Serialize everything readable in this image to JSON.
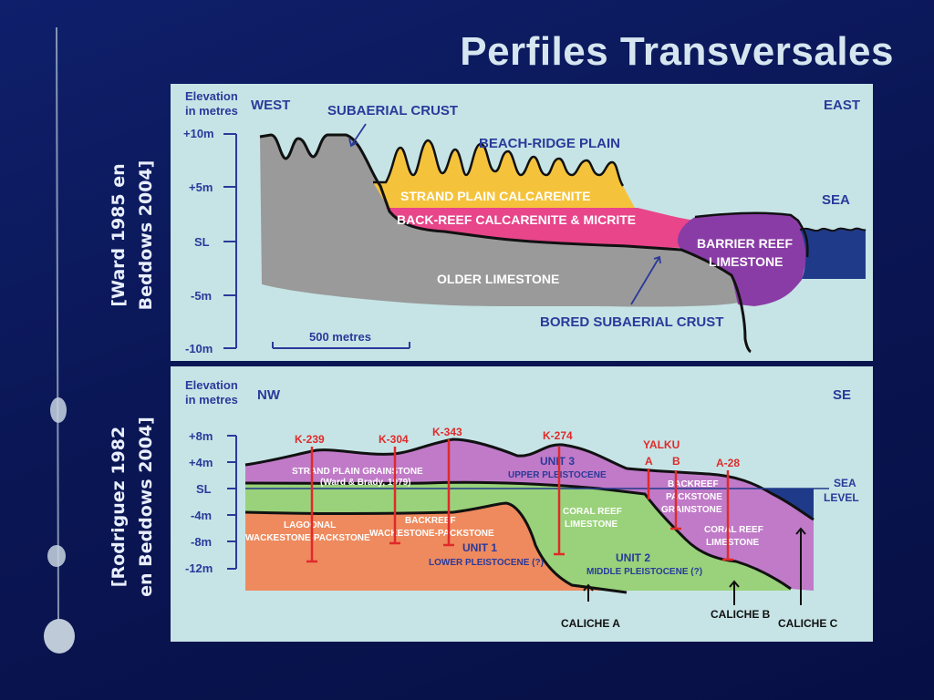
{
  "slide": {
    "title": "Perfiles Transversales",
    "citation_top": [
      "[Ward 1985 en",
      "Beddows 2004]"
    ],
    "citation_bottom": [
      "[Rodriguez 1982",
      "en Beddows 2004]"
    ]
  },
  "top_profile": {
    "elevation_label": [
      "Elevation",
      "in metres"
    ],
    "direction_left": "WEST",
    "direction_right": "EAST",
    "axis_ticks": [
      "+10m",
      "+5m",
      "SL",
      "-5m",
      "-10m"
    ],
    "scale_bar": "500 metres",
    "units": {
      "subaerial_crust": "SUBAERIAL CRUST",
      "beach_ridge_plain": "BEACH-RIDGE PLAIN",
      "strand_plain": "STRAND PLAIN CALCARENITE",
      "back_reef": "BACK-REEF CALCARENITE & MICRITE",
      "sea": "SEA",
      "barrier_reef": [
        "BARRIER REEF",
        "LIMESTONE"
      ],
      "older_limestone": "OLDER LIMESTONE",
      "bored_crust": "BORED SUBAERIAL CRUST"
    },
    "colors": {
      "panel_bg": "#c6e4e6",
      "grey": "#9a9a9a",
      "yellow": "#f5c33b",
      "pink": "#e8458a",
      "purple": "#8a3ca6",
      "sea": "#203a8a",
      "text": "#2a3a9a"
    }
  },
  "bottom_profile": {
    "elevation_label": [
      "Elevation",
      "in metres"
    ],
    "direction_left": "NW",
    "direction_right": "SE",
    "axis_ticks": [
      "+8m",
      "+4m",
      "SL",
      "-4m",
      "-8m",
      "-12m"
    ],
    "sea_level": [
      "SEA",
      "LEVEL"
    ],
    "wells": [
      "K-239",
      "K-304",
      "K-343",
      "K-274",
      "YALKU",
      "A",
      "B",
      "A-28"
    ],
    "units": {
      "strand_plain": [
        "STRAND PLAIN GRAINSTONE",
        "(Ward & Brady, 1979)"
      ],
      "unit3": [
        "UNIT 3",
        "UPPER PLEISTOCENE"
      ],
      "backreef_packstone": [
        "BACKREEF",
        "PACKSTONE",
        "GRAINSTONE"
      ],
      "lagoonal": [
        "LAGOONAL",
        "WACKESTONE-PACKSTONE"
      ],
      "backreef_wackestone": [
        "BACKREEF",
        "WACKESTONE-PACKSTONE"
      ],
      "coral_reef_1": [
        "CORAL REEF",
        "LIMESTONE"
      ],
      "coral_reef_2": [
        "CORAL REEF",
        "LIMESTONE"
      ],
      "unit1": [
        "UNIT 1",
        "LOWER PLEISTOCENE (?)"
      ],
      "unit2": [
        "UNIT 2",
        "MIDDLE PLEISTOCENE (?)"
      ]
    },
    "caliche": [
      "CALICHE A",
      "CALICHE B",
      "CALICHE C"
    ],
    "colors": {
      "purple": "#c07ac8",
      "green": "#99d27a",
      "orange": "#ee8a5e",
      "sea": "#203a8a",
      "well": "#e02a2a",
      "text": "#2a3a9a"
    }
  }
}
